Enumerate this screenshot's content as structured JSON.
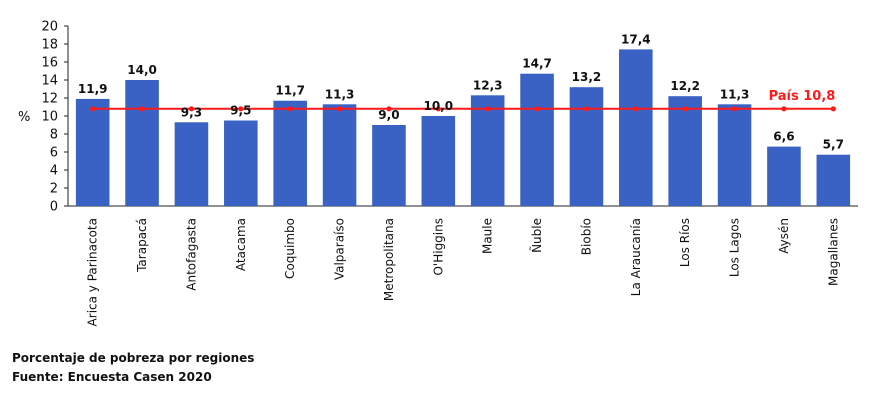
{
  "chart_data": {
    "type": "bar",
    "categories": [
      "Arica y Parinacota",
      "Tarapacá",
      "Antofagasta",
      "Atacama",
      "Coquimbo",
      "Valparaíso",
      "Metropolitana",
      "O'Higgins",
      "Maule",
      "Ñuble",
      "Biobío",
      "La Araucanía",
      "Los Ríos",
      "Los Lagos",
      "Aysén",
      "Magallanes"
    ],
    "values": [
      11.9,
      14.0,
      9.3,
      9.5,
      11.7,
      11.3,
      9.0,
      10.0,
      12.3,
      14.7,
      13.2,
      17.4,
      12.2,
      11.3,
      6.6,
      5.7
    ],
    "value_labels": [
      "11,9",
      "14,0",
      "9,3",
      "9,5",
      "11,7",
      "11,3",
      "9,0",
      "10,0",
      "12,3",
      "14,7",
      "13,2",
      "17,4",
      "12,2",
      "11,3",
      "6,6",
      "5,7"
    ],
    "ylabel": "%",
    "ylim": [
      0,
      20
    ],
    "yticks": [
      0,
      2,
      4,
      6,
      8,
      10,
      12,
      14,
      16,
      18,
      20
    ],
    "bar_color": "#3a62c4",
    "reference_line": {
      "label": "País 10,8",
      "value": 10.8,
      "color": "#ff1a1a"
    },
    "grid": false
  },
  "captions": {
    "line1": "Porcentaje de pobreza por regiones",
    "line2": "Fuente: Encuesta Casen 2020"
  }
}
